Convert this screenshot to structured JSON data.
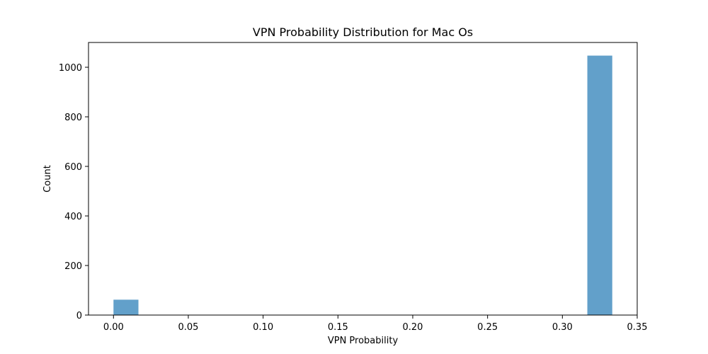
{
  "chart_data": {
    "type": "bar",
    "title": "VPN Probability Distribution for Mac Os",
    "xlabel": "VPN Probability",
    "ylabel": "Count",
    "xlim": [
      -0.0167,
      0.35
    ],
    "ylim": [
      0,
      1100
    ],
    "xticks": [
      0.0,
      0.05,
      0.1,
      0.15,
      0.2,
      0.25,
      0.3,
      0.35
    ],
    "xtick_labels": [
      "0.00",
      "0.05",
      "0.10",
      "0.15",
      "0.20",
      "0.25",
      "0.30",
      "0.35"
    ],
    "yticks": [
      0,
      200,
      400,
      600,
      800,
      1000
    ],
    "ytick_labels": [
      "0",
      "200",
      "400",
      "600",
      "800",
      "1000"
    ],
    "bins": [
      {
        "x0": 0.0,
        "x1": 0.01667,
        "count": 62
      },
      {
        "x0": 0.31667,
        "x1": 0.33333,
        "count": 1047
      }
    ],
    "bar_color": "#1f77b4",
    "bar_alpha": 0.7,
    "grid": false,
    "legend": "none"
  }
}
